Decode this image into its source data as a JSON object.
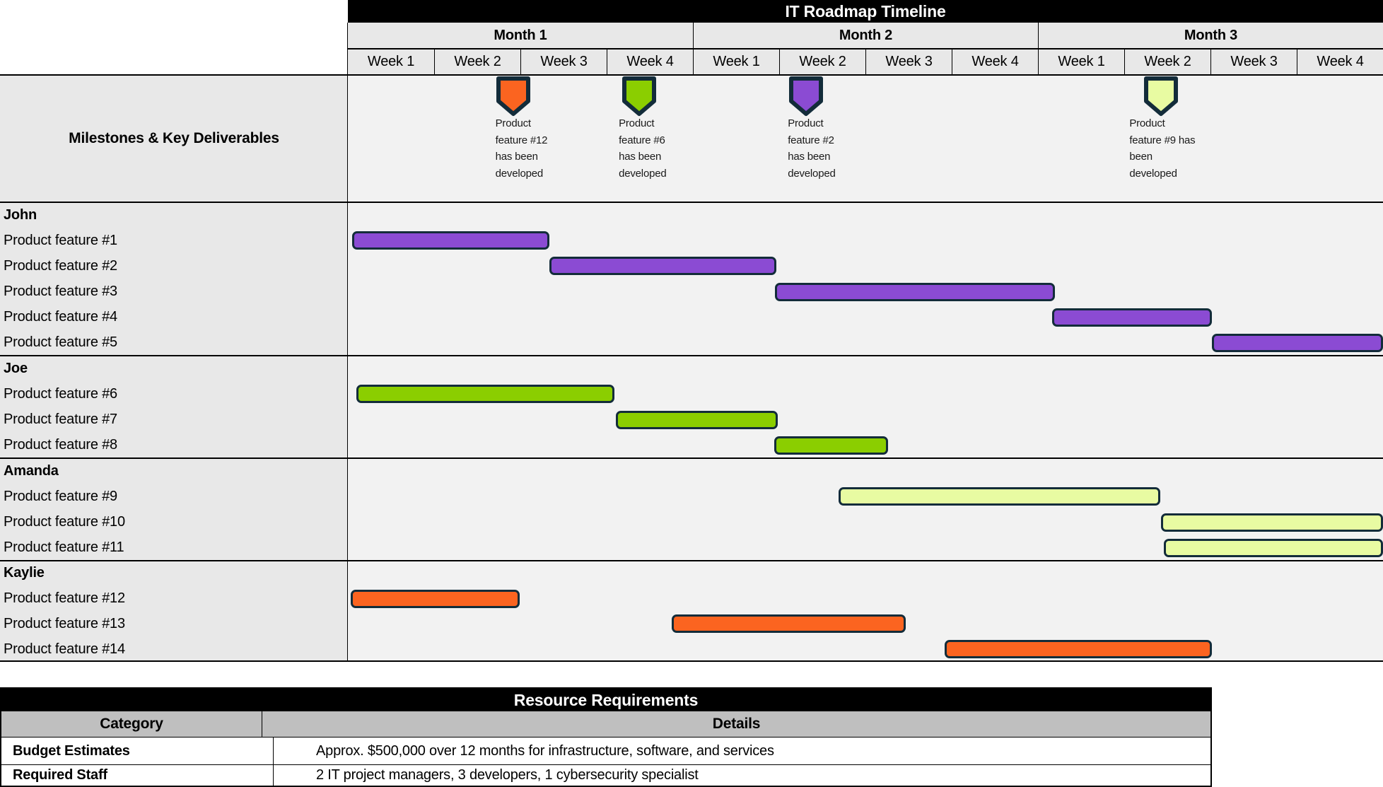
{
  "chart_data": {
    "type": "gantt",
    "title": "IT Roadmap Timeline",
    "row_label_header": "Milestones & Key Deliverables",
    "weeks_total": 12,
    "months": [
      {
        "label": "Month 1",
        "weeks": [
          "Week 1",
          "Week 2",
          "Week 3",
          "Week 4"
        ]
      },
      {
        "label": "Month 2",
        "weeks": [
          "Week 1",
          "Week 2",
          "Week 3",
          "Week 4"
        ]
      },
      {
        "label": "Month 3",
        "weeks": [
          "Week 1",
          "Week 2",
          "Week 3",
          "Week 4"
        ]
      }
    ],
    "groups": [
      {
        "name": "John",
        "color": "#8B4BD3",
        "tasks": [
          {
            "label": "Product feature #1",
            "start_week": 0.05,
            "end_week": 2.34
          },
          {
            "label": "Product feature #2",
            "start_week": 2.34,
            "end_week": 4.97
          },
          {
            "label": "Product feature #3",
            "start_week": 4.95,
            "end_week": 8.2
          },
          {
            "label": "Product feature #4",
            "start_week": 8.16,
            "end_week": 10.02
          },
          {
            "label": "Product feature #5",
            "start_week": 10.02,
            "end_week": 12.0
          }
        ]
      },
      {
        "name": "Joe",
        "color": "#8BCE00",
        "tasks": [
          {
            "label": "Product feature #6",
            "start_week": 0.1,
            "end_week": 3.09
          },
          {
            "label": "Product feature #7",
            "start_week": 3.11,
            "end_week": 4.98
          },
          {
            "label": "Product feature #8",
            "start_week": 4.94,
            "end_week": 6.26
          }
        ]
      },
      {
        "name": "Amanda",
        "color": "#E8FBA2",
        "tasks": [
          {
            "label": "Product feature #9",
            "start_week": 5.69,
            "end_week": 9.42
          },
          {
            "label": "Product feature #10",
            "start_week": 9.43,
            "end_week": 12.0
          },
          {
            "label": "Product feature #11",
            "start_week": 9.46,
            "end_week": 12.0
          }
        ]
      },
      {
        "name": "Kaylie",
        "color": "#FB6420",
        "tasks": [
          {
            "label": "Product feature #12",
            "start_week": 0.03,
            "end_week": 1.99
          },
          {
            "label": "Product feature #13",
            "start_week": 3.75,
            "end_week": 6.47
          },
          {
            "label": "Product feature #14",
            "start_week": 6.92,
            "end_week": 10.02
          }
        ]
      }
    ],
    "milestones": [
      {
        "color": "#FB6420",
        "center_week": 1.92,
        "note_left_week": 1.71,
        "lines": [
          "Product",
          "feature #12",
          "has been",
          "developed"
        ]
      },
      {
        "color": "#8BCE00",
        "center_week": 3.38,
        "note_left_week": 3.14,
        "lines": [
          "Product",
          "feature #6",
          "has been",
          "developed"
        ]
      },
      {
        "color": "#8B4BD3",
        "center_week": 5.31,
        "note_left_week": 5.1,
        "lines": [
          "Product",
          "feature #2",
          "has been",
          "developed"
        ]
      },
      {
        "color": "#E8FBA2",
        "center_week": 9.43,
        "note_left_week": 9.06,
        "lines": [
          "Product",
          "feature #9 has",
          "been",
          "developed"
        ]
      }
    ]
  },
  "resources": {
    "title": "Resource Requirements",
    "columns": [
      "Category",
      "Details"
    ],
    "rows": [
      {
        "category": "Budget Estimates",
        "details": "Approx. $500,000 over 12 months for infrastructure, software, and services"
      },
      {
        "category": "Required Staff",
        "details": "2 IT project managers, 3 developers, 1 cybersecurity specialist"
      }
    ]
  },
  "colors": {
    "bar_border": "#132C3A",
    "header_bg": "#E8E8E8",
    "timeline_bg": "#F2F2F2",
    "table_header_bg": "#BFBFBF",
    "title_bg": "#000000",
    "title_text": "#FFFFFF"
  }
}
